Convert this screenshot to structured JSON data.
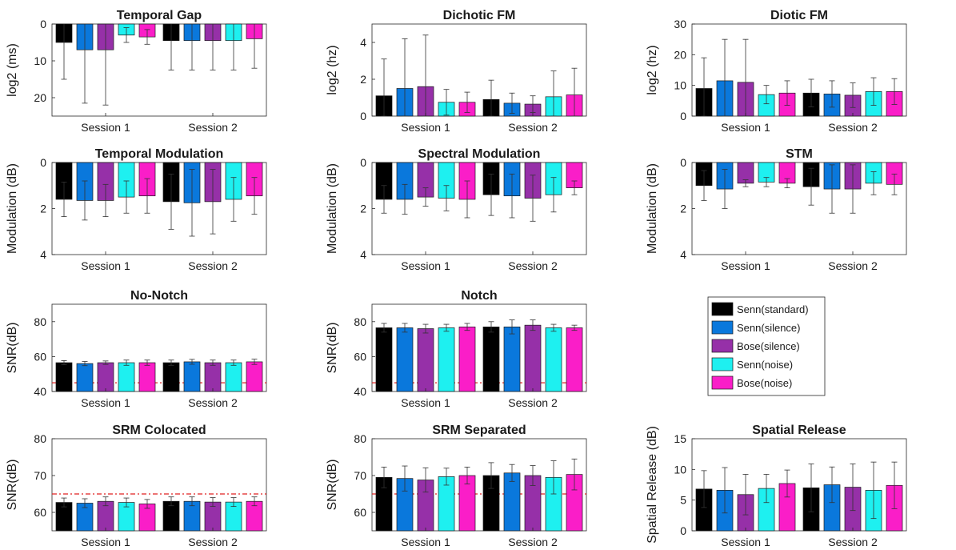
{
  "legend": {
    "entries": [
      {
        "label": "Senn(standard)",
        "color": "#000000"
      },
      {
        "label": "Senn(silence)",
        "color": "#0a78dc"
      },
      {
        "label": "Bose(silence)",
        "color": "#9630a8"
      },
      {
        "label": "Senn(noise)",
        "color": "#1ef0f0"
      },
      {
        "label": "Bose(noise)",
        "color": "#fa1ec8"
      }
    ]
  },
  "reference_line_color": "#e02020",
  "chart_data": [
    {
      "id": "temporal-gap",
      "type": "bar",
      "title": "Temporal Gap",
      "xlabel": "",
      "ylabel": "log2 (ms)",
      "ylim": [
        0,
        25
      ],
      "y_reversed": true,
      "yticks": [
        0,
        10,
        20
      ],
      "categories": [
        "Session 1",
        "Session 2"
      ],
      "reference_line": 0,
      "series": [
        {
          "name": "Senn(standard)",
          "values": [
            5,
            4.5
          ],
          "error": [
            10,
            8
          ]
        },
        {
          "name": "Senn(silence)",
          "values": [
            7,
            4.5
          ],
          "error": [
            14.5,
            8
          ]
        },
        {
          "name": "Bose(silence)",
          "values": [
            7,
            4.5
          ],
          "error": [
            15,
            8
          ]
        },
        {
          "name": "Senn(noise)",
          "values": [
            3,
            4.5
          ],
          "error": [
            2,
            8
          ]
        },
        {
          "name": "Bose(noise)",
          "values": [
            3.5,
            4
          ],
          "error": [
            2,
            8
          ]
        }
      ]
    },
    {
      "id": "dichotic-fm",
      "type": "bar",
      "title": "Dichotic FM",
      "xlabel": "",
      "ylabel": "log2 (hz)",
      "ylim": [
        0,
        5
      ],
      "y_reversed": false,
      "yticks": [
        0,
        2,
        4
      ],
      "categories": [
        "Session 1",
        "Session 2"
      ],
      "series": [
        {
          "name": "Senn(standard)",
          "values": [
            1.1,
            0.9
          ],
          "error": [
            2,
            1.05
          ]
        },
        {
          "name": "Senn(silence)",
          "values": [
            1.5,
            0.7
          ],
          "error": [
            2.7,
            0.55
          ]
        },
        {
          "name": "Bose(silence)",
          "values": [
            1.6,
            0.65
          ],
          "error": [
            2.8,
            0.45
          ]
        },
        {
          "name": "Senn(noise)",
          "values": [
            0.75,
            1.05
          ],
          "error": [
            0.7,
            1.4
          ]
        },
        {
          "name": "Bose(noise)",
          "values": [
            0.75,
            1.15
          ],
          "error": [
            0.55,
            1.45
          ]
        }
      ]
    },
    {
      "id": "diotic-fm",
      "type": "bar",
      "title": "Diotic FM",
      "xlabel": "",
      "ylabel": "log2 (hz)",
      "ylim": [
        0,
        30
      ],
      "y_reversed": false,
      "yticks": [
        0,
        10,
        20,
        30
      ],
      "categories": [
        "Session 1",
        "Session 2"
      ],
      "series": [
        {
          "name": "Senn(standard)",
          "values": [
            9,
            7.5
          ],
          "error": [
            10,
            4.5
          ]
        },
        {
          "name": "Senn(silence)",
          "values": [
            11.5,
            7.2
          ],
          "error": [
            13.5,
            4.3
          ]
        },
        {
          "name": "Bose(silence)",
          "values": [
            11,
            6.8
          ],
          "error": [
            14,
            4
          ]
        },
        {
          "name": "Senn(noise)",
          "values": [
            7,
            8
          ],
          "error": [
            3,
            4.5
          ]
        },
        {
          "name": "Bose(noise)",
          "values": [
            7.5,
            8
          ],
          "error": [
            4,
            4.2
          ]
        }
      ]
    },
    {
      "id": "temporal-modulation",
      "type": "bar",
      "title": "Temporal Modulation",
      "xlabel": "",
      "ylabel": "Modulation (dB)",
      "ylim": [
        0,
        4
      ],
      "y_reversed": true,
      "yticks": [
        0,
        2,
        4
      ],
      "categories": [
        "Session 1",
        "Session 2"
      ],
      "series": [
        {
          "name": "Senn(standard)",
          "values": [
            1.6,
            1.7
          ],
          "error": [
            0.75,
            1.2
          ]
        },
        {
          "name": "Senn(silence)",
          "values": [
            1.65,
            1.75
          ],
          "error": [
            0.85,
            1.45
          ]
        },
        {
          "name": "Bose(silence)",
          "values": [
            1.65,
            1.7
          ],
          "error": [
            0.7,
            1.4
          ]
        },
        {
          "name": "Senn(noise)",
          "values": [
            1.5,
            1.6
          ],
          "error": [
            0.7,
            0.95
          ]
        },
        {
          "name": "Bose(noise)",
          "values": [
            1.45,
            1.45
          ],
          "error": [
            0.75,
            0.8
          ]
        }
      ]
    },
    {
      "id": "spectral-modulation",
      "type": "bar",
      "title": "Spectral Modulation",
      "xlabel": "",
      "ylabel": "Modulation (dB)",
      "ylim": [
        0,
        4
      ],
      "y_reversed": true,
      "yticks": [
        0,
        2,
        4
      ],
      "categories": [
        "Session 1",
        "Session 2"
      ],
      "series": [
        {
          "name": "Senn(standard)",
          "values": [
            1.6,
            1.4
          ],
          "error": [
            0.6,
            0.9
          ]
        },
        {
          "name": "Senn(silence)",
          "values": [
            1.6,
            1.45
          ],
          "error": [
            0.65,
            0.95
          ]
        },
        {
          "name": "Bose(silence)",
          "values": [
            1.5,
            1.55
          ],
          "error": [
            0.4,
            1
          ]
        },
        {
          "name": "Senn(noise)",
          "values": [
            1.55,
            1.4
          ],
          "error": [
            0.55,
            0.75
          ]
        },
        {
          "name": "Bose(noise)",
          "values": [
            1.6,
            1.1
          ],
          "error": [
            0.8,
            0.3
          ]
        }
      ]
    },
    {
      "id": "stm",
      "type": "bar",
      "title": "STM",
      "xlabel": "",
      "ylabel": "Modulation (dB)",
      "ylim": [
        0,
        4
      ],
      "y_reversed": true,
      "yticks": [
        0,
        2,
        4
      ],
      "categories": [
        "Session 1",
        "Session 2"
      ],
      "series": [
        {
          "name": "Senn(standard)",
          "values": [
            1.0,
            1.05
          ],
          "error": [
            0.65,
            0.8
          ]
        },
        {
          "name": "Senn(silence)",
          "values": [
            1.15,
            1.15
          ],
          "error": [
            0.85,
            1.05
          ]
        },
        {
          "name": "Bose(silence)",
          "values": [
            0.9,
            1.15
          ],
          "error": [
            0.15,
            1.05
          ]
        },
        {
          "name": "Senn(noise)",
          "values": [
            0.85,
            0.9
          ],
          "error": [
            0.2,
            0.5
          ]
        },
        {
          "name": "Bose(noise)",
          "values": [
            0.9,
            0.95
          ],
          "error": [
            0.2,
            0.45
          ]
        }
      ]
    },
    {
      "id": "no-notch",
      "type": "bar",
      "title": "No-Notch",
      "xlabel": "",
      "ylabel": "SNR(dB)",
      "ylim": [
        40,
        90
      ],
      "y_reversed": false,
      "yticks": [
        40,
        60,
        80
      ],
      "categories": [
        "Session 1",
        "Session 2"
      ],
      "reference_line": 45,
      "series": [
        {
          "name": "Senn(standard)",
          "values": [
            56.5,
            56.5
          ],
          "error": [
            1.2,
            1.5
          ]
        },
        {
          "name": "Senn(silence)",
          "values": [
            56,
            57
          ],
          "error": [
            1.2,
            1.4
          ]
        },
        {
          "name": "Bose(silence)",
          "values": [
            56.5,
            56.5
          ],
          "error": [
            1,
            1.5
          ]
        },
        {
          "name": "Senn(noise)",
          "values": [
            56.5,
            56.5
          ],
          "error": [
            1.5,
            1.5
          ]
        },
        {
          "name": "Bose(noise)",
          "values": [
            56.5,
            57
          ],
          "error": [
            1.5,
            1.5
          ]
        }
      ]
    },
    {
      "id": "notch",
      "type": "bar",
      "title": "Notch",
      "xlabel": "",
      "ylabel": "SNR(dB)",
      "ylim": [
        40,
        90
      ],
      "y_reversed": false,
      "yticks": [
        40,
        60,
        80
      ],
      "categories": [
        "Session 1",
        "Session 2"
      ],
      "reference_line": 45,
      "series": [
        {
          "name": "Senn(standard)",
          "values": [
            76.5,
            77
          ],
          "error": [
            2.5,
            3
          ]
        },
        {
          "name": "Senn(silence)",
          "values": [
            76.5,
            77
          ],
          "error": [
            2.5,
            4
          ]
        },
        {
          "name": "Bose(silence)",
          "values": [
            76,
            78
          ],
          "error": [
            2.5,
            3
          ]
        },
        {
          "name": "Senn(noise)",
          "values": [
            76.5,
            76.5
          ],
          "error": [
            2,
            2
          ]
        },
        {
          "name": "Bose(noise)",
          "values": [
            77,
            76.5
          ],
          "error": [
            2,
            1.5
          ]
        }
      ]
    },
    {
      "id": "srm-colocated",
      "type": "bar",
      "title": "SRM Colocated",
      "xlabel": "",
      "ylabel": "SNR(dB)",
      "ylim": [
        55,
        80
      ],
      "y_reversed": false,
      "yticks": [
        60,
        70,
        80
      ],
      "categories": [
        "Session 1",
        "Session 2"
      ],
      "reference_line": 65,
      "series": [
        {
          "name": "Senn(standard)",
          "values": [
            62.7,
            63
          ],
          "error": [
            1.2,
            1.2
          ]
        },
        {
          "name": "Senn(silence)",
          "values": [
            62.5,
            63
          ],
          "error": [
            1.2,
            1.2
          ]
        },
        {
          "name": "Bose(silence)",
          "values": [
            63,
            62.8
          ],
          "error": [
            1.2,
            1.2
          ]
        },
        {
          "name": "Senn(noise)",
          "values": [
            62.7,
            62.8
          ],
          "error": [
            1.2,
            1.2
          ]
        },
        {
          "name": "Bose(noise)",
          "values": [
            62.3,
            63
          ],
          "error": [
            1.2,
            1.2
          ]
        }
      ]
    },
    {
      "id": "srm-separated",
      "type": "bar",
      "title": "SRM Separated",
      "xlabel": "",
      "ylabel": "SNR(dB)",
      "ylim": [
        55,
        80
      ],
      "y_reversed": false,
      "yticks": [
        60,
        70,
        80
      ],
      "categories": [
        "Session 1",
        "Session 2"
      ],
      "reference_line": 65,
      "series": [
        {
          "name": "Senn(standard)",
          "values": [
            69.5,
            70
          ],
          "error": [
            2.8,
            3.5
          ]
        },
        {
          "name": "Senn(silence)",
          "values": [
            69.2,
            70.7
          ],
          "error": [
            3.4,
            2.3
          ]
        },
        {
          "name": "Bose(silence)",
          "values": [
            68.8,
            70
          ],
          "error": [
            3.3,
            2.7
          ]
        },
        {
          "name": "Senn(noise)",
          "values": [
            69.7,
            69.5
          ],
          "error": [
            2.3,
            4.5
          ]
        },
        {
          "name": "Bose(noise)",
          "values": [
            70,
            70.3
          ],
          "error": [
            2.3,
            4.2
          ]
        }
      ]
    },
    {
      "id": "spatial-release",
      "type": "bar",
      "title": "Spatial Release",
      "xlabel": "",
      "ylabel": "Spatial Release (dB)",
      "ylim": [
        0,
        15
      ],
      "y_reversed": false,
      "yticks": [
        0,
        5,
        10,
        15
      ],
      "categories": [
        "Session 1",
        "Session 2"
      ],
      "series": [
        {
          "name": "Senn(standard)",
          "values": [
            6.8,
            7
          ],
          "error": [
            3,
            3.9
          ]
        },
        {
          "name": "Senn(silence)",
          "values": [
            6.6,
            7.5
          ],
          "error": [
            3.7,
            2.9
          ]
        },
        {
          "name": "Bose(silence)",
          "values": [
            5.9,
            7.1
          ],
          "error": [
            3.3,
            3.8
          ]
        },
        {
          "name": "Senn(noise)",
          "values": [
            6.9,
            6.6
          ],
          "error": [
            2.3,
            4.6
          ]
        },
        {
          "name": "Bose(noise)",
          "values": [
            7.7,
            7.4
          ],
          "error": [
            2.2,
            3.8
          ]
        }
      ]
    }
  ]
}
